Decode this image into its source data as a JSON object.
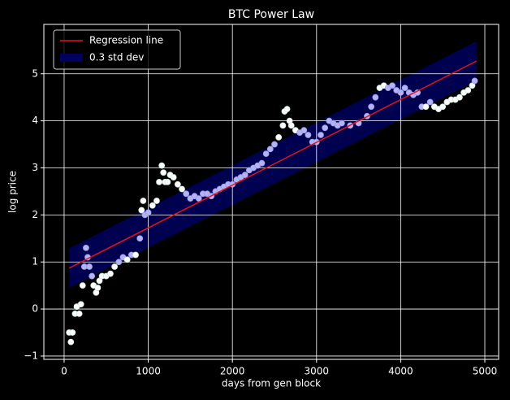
{
  "chart_data": {
    "type": "scatter",
    "title": "BTC Power Law",
    "x_label": "days from gen block",
    "y_label": "log price",
    "xlim": [
      -241,
      5164
    ],
    "ylim": [
      -1.07,
      6.05
    ],
    "xticks": [
      0,
      1000,
      2000,
      3000,
      4000,
      5000
    ],
    "yticks": [
      {
        "value": -1,
        "label": "−1"
      },
      0,
      1,
      2,
      3,
      4,
      5
    ],
    "grid": true,
    "legend": "upper left",
    "regression": {
      "name": "Regression line",
      "color": "#e8111a",
      "x": [
        60,
        4900
      ],
      "y": [
        0.87,
        5.27
      ]
    },
    "band": {
      "name": "0.3 std dev",
      "color": "#00005e",
      "x": [
        60,
        4900
      ],
      "lower": [
        0.45,
        4.85
      ],
      "upper": [
        1.29,
        5.69
      ]
    },
    "points": {
      "inside_color": "#b4b4f5",
      "outside_color": "#ffffff",
      "x": [
        60,
        80,
        100,
        130,
        150,
        180,
        200,
        220,
        240,
        260,
        280,
        300,
        330,
        350,
        380,
        400,
        420,
        450,
        500,
        550,
        600,
        650,
        700,
        750,
        800,
        850,
        900,
        920,
        940,
        960,
        1000,
        1050,
        1100,
        1130,
        1160,
        1180,
        1200,
        1230,
        1260,
        1300,
        1350,
        1400,
        1450,
        1500,
        1550,
        1600,
        1650,
        1700,
        1750,
        1800,
        1850,
        1900,
        1950,
        2000,
        2050,
        2100,
        2150,
        2200,
        2250,
        2300,
        2350,
        2400,
        2450,
        2500,
        2550,
        2600,
        2620,
        2650,
        2680,
        2700,
        2750,
        2800,
        2850,
        2900,
        2950,
        3000,
        3050,
        3100,
        3150,
        3200,
        3250,
        3300,
        3400,
        3500,
        3600,
        3650,
        3700,
        3750,
        3800,
        3850,
        3900,
        3950,
        4000,
        4050,
        4100,
        4150,
        4200,
        4250,
        4300,
        4350,
        4400,
        4450,
        4500,
        4550,
        4600,
        4650,
        4700,
        4750,
        4800,
        4850,
        4880
      ],
      "y": [
        -0.5,
        -0.7,
        -0.5,
        -0.1,
        0.05,
        -0.1,
        0.1,
        0.5,
        0.9,
        1.3,
        1.1,
        0.9,
        0.7,
        0.5,
        0.35,
        0.45,
        0.6,
        0.7,
        0.7,
        0.75,
        0.9,
        1.0,
        1.1,
        1.05,
        1.15,
        1.15,
        1.5,
        2.1,
        2.3,
        2.0,
        2.05,
        2.2,
        2.3,
        2.7,
        3.05,
        2.9,
        2.7,
        2.7,
        2.85,
        2.8,
        2.65,
        2.55,
        2.45,
        2.35,
        2.4,
        2.35,
        2.45,
        2.45,
        2.4,
        2.5,
        2.55,
        2.6,
        2.65,
        2.65,
        2.75,
        2.8,
        2.85,
        2.95,
        3.0,
        3.05,
        3.1,
        3.3,
        3.4,
        3.5,
        3.65,
        3.9,
        4.2,
        4.25,
        4.0,
        3.9,
        3.8,
        3.75,
        3.8,
        3.7,
        3.55,
        3.55,
        3.7,
        3.85,
        4.0,
        3.95,
        3.9,
        3.95,
        3.9,
        3.95,
        4.1,
        4.3,
        4.5,
        4.7,
        4.75,
        4.7,
        4.75,
        4.65,
        4.6,
        4.7,
        4.6,
        4.55,
        4.6,
        4.3,
        4.3,
        4.4,
        4.3,
        4.25,
        4.3,
        4.4,
        4.45,
        4.45,
        4.5,
        4.6,
        4.65,
        4.75,
        4.85
      ]
    }
  }
}
